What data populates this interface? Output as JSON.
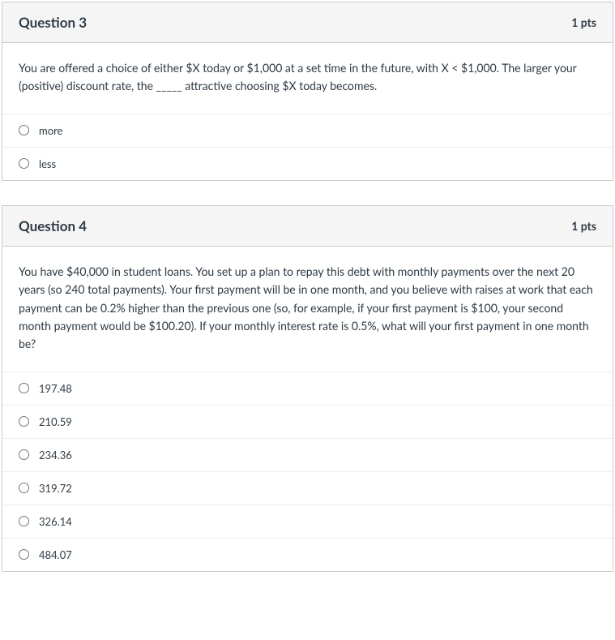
{
  "colors": {
    "background": "#ffffff",
    "card_border": "#c7cdd1",
    "header_bg": "#f5f5f5",
    "text": "#2d3b45",
    "option_divider": "#eeeeee"
  },
  "typography": {
    "body_fontsize": 14,
    "title_fontsize": 17,
    "option_fontsize": 13,
    "line_height": 1.6
  },
  "questions": [
    {
      "title": "Question 3",
      "points": "1 pts",
      "prompt": "You are offered a choice of either $X today or $1,000 at a set time in the future, with X < $1,000.  The larger your (positive) discount rate, the _____ attractive choosing $X today becomes.",
      "options": [
        "more",
        "less"
      ]
    },
    {
      "title": "Question 4",
      "points": "1 pts",
      "prompt": "You have $40,000 in student loans.  You set up a plan to repay this debt with monthly payments over the next 20 years (so 240 total payments).  Your first payment will be in one month, and you believe with raises at work that each payment can be 0.2% higher than the previous one (so, for example, if your first payment is $100, your second month payment would be $100.20).  If your monthly interest rate is 0.5%, what will your first payment in one month be?",
      "options": [
        "197.48",
        "210.59",
        "234.36",
        "319.72",
        "326.14",
        "484.07"
      ]
    }
  ]
}
